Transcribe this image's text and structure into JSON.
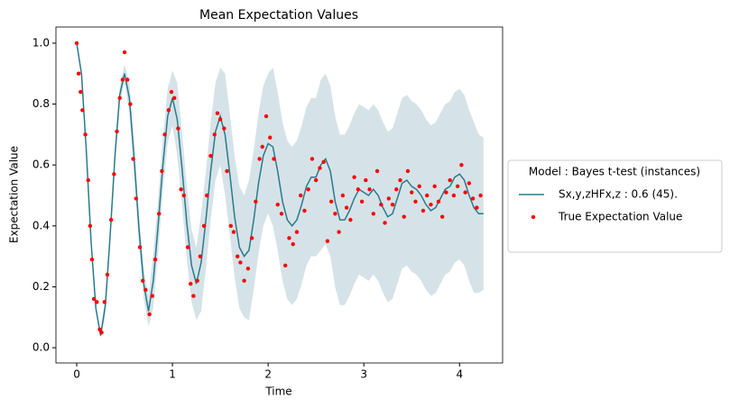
{
  "chart_data": {
    "type": "line",
    "title": "Mean Expectation Values",
    "x_label": "Time",
    "y_label": "Expectation Value",
    "xlim": [
      -0.217,
      4.45
    ],
    "ylim": [
      -0.05,
      1.053
    ],
    "xticks": [
      0,
      1,
      2,
      3,
      4
    ],
    "yticks": [
      {
        "value": 0,
        "label": "0.0"
      },
      {
        "value": 0.2,
        "label": "0.2"
      },
      {
        "value": 0.4,
        "label": "0.4"
      },
      {
        "value": 0.6,
        "label": "0.6"
      },
      {
        "value": 0.8,
        "label": "0.8"
      },
      {
        "value": 1,
        "label": "1.0"
      }
    ],
    "legend_title": "Model : Bayes t-test (instances)",
    "legend_position": "right",
    "x": [
      0,
      0.05,
      0.1,
      0.15,
      0.2,
      0.25,
      0.3,
      0.35,
      0.4,
      0.45,
      0.5,
      0.55,
      0.6,
      0.65,
      0.7,
      0.75,
      0.8,
      0.85,
      0.9,
      0.95,
      1,
      1.05,
      1.1,
      1.15,
      1.2,
      1.25,
      1.3,
      1.35,
      1.4,
      1.45,
      1.5,
      1.55,
      1.6,
      1.65,
      1.7,
      1.75,
      1.8,
      1.85,
      1.9,
      1.95,
      2,
      2.05,
      2.1,
      2.15,
      2.2,
      2.25,
      2.3,
      2.35,
      2.4,
      2.45,
      2.5,
      2.55,
      2.6,
      2.65,
      2.7,
      2.75,
      2.8,
      2.85,
      2.9,
      2.95,
      3,
      3.05,
      3.1,
      3.15,
      3.2,
      3.25,
      3.3,
      3.35,
      3.4,
      3.45,
      3.5,
      3.55,
      3.6,
      3.65,
      3.7,
      3.75,
      3.8,
      3.85,
      3.9,
      3.95,
      4,
      4.05,
      4.1,
      4.15,
      4.2,
      4.25
    ],
    "band": {
      "color": "#d5e3e8",
      "lower": [
        0.99,
        0.89,
        0.64,
        0.34,
        0.12,
        0.03,
        0.11,
        0.34,
        0.6,
        0.8,
        0.87,
        0.77,
        0.57,
        0.34,
        0.16,
        0.07,
        0.13,
        0.31,
        0.51,
        0.67,
        0.73,
        0.63,
        0.47,
        0.29,
        0.15,
        0.09,
        0.12,
        0.26,
        0.42,
        0.55,
        0.6,
        0.5,
        0.37,
        0.23,
        0.13,
        0.1,
        0.09,
        0.19,
        0.31,
        0.4,
        0.44,
        0.4,
        0.32,
        0.22,
        0.16,
        0.14,
        0.16,
        0.21,
        0.27,
        0.3,
        0.3,
        0.32,
        0.34,
        0.3,
        0.2,
        0.14,
        0.14,
        0.17,
        0.21,
        0.24,
        0.23,
        0.22,
        0.24,
        0.22,
        0.18,
        0.15,
        0.16,
        0.21,
        0.26,
        0.27,
        0.25,
        0.24,
        0.22,
        0.19,
        0.17,
        0.18,
        0.21,
        0.24,
        0.25,
        0.28,
        0.29,
        0.27,
        0.22,
        0.18,
        0.18,
        0.19
      ],
      "upper": [
        1.01,
        0.91,
        0.66,
        0.36,
        0.14,
        0.05,
        0.17,
        0.4,
        0.66,
        0.86,
        0.93,
        0.87,
        0.67,
        0.44,
        0.26,
        0.17,
        0.31,
        0.49,
        0.69,
        0.85,
        0.91,
        0.87,
        0.71,
        0.53,
        0.39,
        0.33,
        0.44,
        0.58,
        0.74,
        0.87,
        0.92,
        0.9,
        0.77,
        0.63,
        0.53,
        0.5,
        0.55,
        0.65,
        0.77,
        0.86,
        0.9,
        0.92,
        0.84,
        0.74,
        0.68,
        0.66,
        0.68,
        0.73,
        0.79,
        0.82,
        0.82,
        0.88,
        0.9,
        0.86,
        0.76,
        0.7,
        0.7,
        0.73,
        0.77,
        0.8,
        0.79,
        0.78,
        0.8,
        0.78,
        0.74,
        0.71,
        0.72,
        0.77,
        0.82,
        0.83,
        0.81,
        0.8,
        0.78,
        0.75,
        0.73,
        0.74,
        0.77,
        0.8,
        0.81,
        0.84,
        0.85,
        0.83,
        0.78,
        0.74,
        0.7,
        0.69
      ]
    },
    "series": [
      {
        "name": "Sx,y,zHFx,z : 0.6 (45).",
        "color": "#2a7a8c",
        "values": [
          1,
          0.9,
          0.65,
          0.35,
          0.13,
          0.04,
          0.14,
          0.37,
          0.63,
          0.83,
          0.9,
          0.82,
          0.62,
          0.39,
          0.21,
          0.12,
          0.22,
          0.4,
          0.6,
          0.76,
          0.82,
          0.75,
          0.59,
          0.41,
          0.27,
          0.21,
          0.28,
          0.42,
          0.58,
          0.71,
          0.76,
          0.7,
          0.57,
          0.43,
          0.33,
          0.3,
          0.32,
          0.42,
          0.54,
          0.63,
          0.67,
          0.66,
          0.58,
          0.48,
          0.42,
          0.4,
          0.42,
          0.47,
          0.53,
          0.56,
          0.56,
          0.6,
          0.62,
          0.58,
          0.48,
          0.42,
          0.42,
          0.45,
          0.49,
          0.52,
          0.51,
          0.5,
          0.52,
          0.5,
          0.46,
          0.43,
          0.44,
          0.49,
          0.54,
          0.55,
          0.53,
          0.52,
          0.5,
          0.47,
          0.45,
          0.46,
          0.49,
          0.52,
          0.53,
          0.56,
          0.57,
          0.55,
          0.5,
          0.46,
          0.44,
          0.44
        ]
      },
      {
        "name": "True Expectation Value",
        "type": "scatter",
        "color": "#ff0000",
        "x": [
          0,
          0.02,
          0.04,
          0.06,
          0.09,
          0.12,
          0.14,
          0.16,
          0.18,
          0.21,
          0.24,
          0.26,
          0.29,
          0.32,
          0.36,
          0.39,
          0.42,
          0.45,
          0.48,
          0.5,
          0.53,
          0.56,
          0.59,
          0.62,
          0.66,
          0.69,
          0.72,
          0.76,
          0.79,
          0.82,
          0.86,
          0.89,
          0.92,
          0.96,
          0.99,
          1.02,
          1.06,
          1.09,
          1.12,
          1.16,
          1.19,
          1.22,
          1.26,
          1.29,
          1.33,
          1.36,
          1.4,
          1.44,
          1.47,
          1.5,
          1.54,
          1.57,
          1.61,
          1.64,
          1.68,
          1.71,
          1.75,
          1.79,
          1.83,
          1.87,
          1.91,
          1.94,
          1.98,
          2.02,
          2.06,
          2.1,
          2.14,
          2.18,
          2.22,
          2.26,
          2.3,
          2.34,
          2.38,
          2.42,
          2.46,
          2.5,
          2.54,
          2.58,
          2.62,
          2.66,
          2.7,
          2.74,
          2.78,
          2.82,
          2.86,
          2.9,
          2.94,
          2.98,
          3.02,
          3.06,
          3.1,
          3.14,
          3.18,
          3.22,
          3.26,
          3.3,
          3.34,
          3.38,
          3.42,
          3.46,
          3.5,
          3.54,
          3.58,
          3.62,
          3.66,
          3.7,
          3.74,
          3.78,
          3.82,
          3.86,
          3.9,
          3.94,
          3.98,
          4.02,
          4.06,
          4.1,
          4.14,
          4.18,
          4.22
        ],
        "values": [
          1,
          0.9,
          0.84,
          0.78,
          0.7,
          0.55,
          0.4,
          0.29,
          0.16,
          0.15,
          0.06,
          0.05,
          0.15,
          0.24,
          0.42,
          0.57,
          0.71,
          0.82,
          0.88,
          0.97,
          0.88,
          0.8,
          0.62,
          0.49,
          0.33,
          0.22,
          0.19,
          0.11,
          0.17,
          0.29,
          0.44,
          0.58,
          0.7,
          0.78,
          0.84,
          0.82,
          0.72,
          0.52,
          0.5,
          0.33,
          0.21,
          0.17,
          0.22,
          0.3,
          0.4,
          0.5,
          0.63,
          0.7,
          0.77,
          0.75,
          0.72,
          0.58,
          0.4,
          0.38,
          0.3,
          0.28,
          0.22,
          0.26,
          0.36,
          0.48,
          0.62,
          0.66,
          0.76,
          0.69,
          0.62,
          0.47,
          0.44,
          0.27,
          0.36,
          0.34,
          0.38,
          0.5,
          0.45,
          0.52,
          0.62,
          0.55,
          0.59,
          0.61,
          0.35,
          0.48,
          0.44,
          0.38,
          0.5,
          0.46,
          0.42,
          0.56,
          0.52,
          0.48,
          0.55,
          0.52,
          0.44,
          0.58,
          0.47,
          0.41,
          0.49,
          0.47,
          0.52,
          0.55,
          0.43,
          0.58,
          0.51,
          0.48,
          0.53,
          0.45,
          0.5,
          0.47,
          0.53,
          0.48,
          0.43,
          0.51,
          0.55,
          0.5,
          0.53,
          0.6,
          0.51,
          0.54,
          0.49,
          0.46,
          0.5
        ]
      }
    ]
  }
}
